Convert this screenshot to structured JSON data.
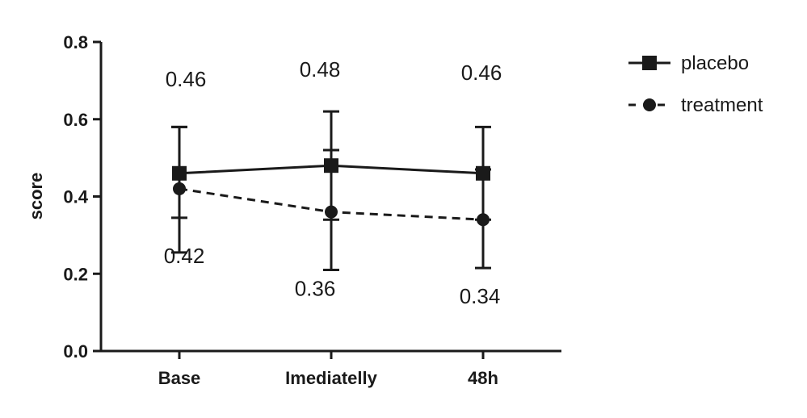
{
  "chart_data": {
    "type": "line",
    "categories": [
      "Base",
      "Imediatelly",
      "48h"
    ],
    "ylabel": "score",
    "ylim": [
      0,
      0.8
    ],
    "yticks": [
      "0.0",
      "0.2",
      "0.4",
      "0.6",
      "0.8"
    ],
    "grid": false,
    "legend_position": "top-right",
    "series": [
      {
        "name": "placebo",
        "values": [
          0.46,
          0.48,
          0.46
        ],
        "error_high": [
          0.58,
          0.62,
          0.58
        ],
        "error_low": [
          0.345,
          0.34,
          0.34
        ],
        "labels": [
          "0.46",
          "0.48",
          "0.46"
        ],
        "marker": "square",
        "line_style": "solid",
        "color": "#1a1a1a"
      },
      {
        "name": "treatment",
        "values": [
          0.42,
          0.36,
          0.34
        ],
        "error_high": [
          0.58,
          0.52,
          0.47
        ],
        "error_low": [
          0.255,
          0.21,
          0.215
        ],
        "labels": [
          "0.42",
          "0.36",
          "0.34"
        ],
        "marker": "circle",
        "line_style": "dashed",
        "color": "#1a1a1a"
      }
    ]
  }
}
